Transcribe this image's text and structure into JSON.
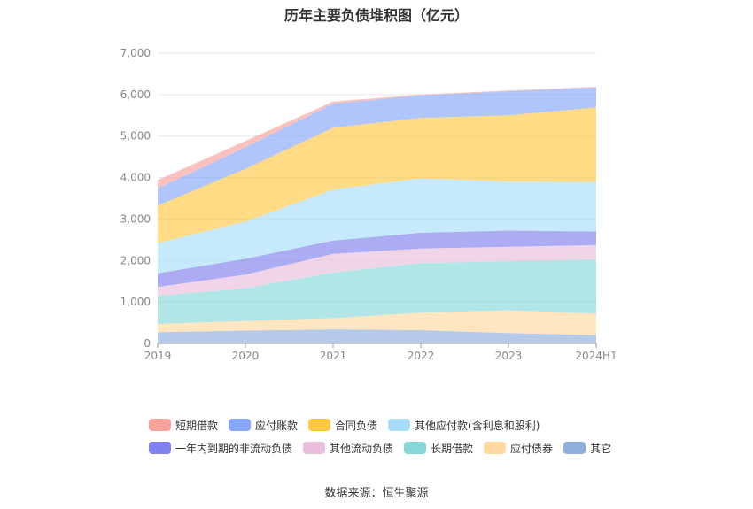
{
  "title": "历年主要负债堆积图（亿元）",
  "source": "数据来源：恒生聚源",
  "chart_data": {
    "type": "area",
    "stacked": true,
    "categories": [
      "2019",
      "2020",
      "2021",
      "2022",
      "2023",
      "2024H1"
    ],
    "ylim": [
      0,
      7000
    ],
    "yticks": [
      "0",
      "1,000",
      "2,000",
      "3,000",
      "4,000",
      "5,000",
      "6,000",
      "7,000"
    ],
    "grid": true,
    "legend_position": "bottom",
    "series": [
      {
        "name": "其它",
        "color": "#8eaedc",
        "values": [
          270,
          310,
          340,
          320,
          250,
          200
        ]
      },
      {
        "name": "应付债券",
        "color": "#ffd8a0",
        "values": [
          200,
          230,
          270,
          420,
          550,
          520
        ]
      },
      {
        "name": "长期借款",
        "color": "#86d8d8",
        "values": [
          680,
          790,
          1100,
          1200,
          1180,
          1300
        ]
      },
      {
        "name": "其他流动负债",
        "color": "#e8bedc",
        "values": [
          210,
          330,
          450,
          350,
          350,
          350
        ]
      },
      {
        "name": "一年内到期的非流动负债",
        "color": "#8080f0",
        "values": [
          330,
          380,
          320,
          380,
          390,
          330
        ]
      },
      {
        "name": "其他应付款(含利息和股利)",
        "color": "#a8ddfa",
        "values": [
          730,
          900,
          1230,
          1310,
          1180,
          1190
        ]
      },
      {
        "name": "合同负债",
        "color": "#fdc742",
        "values": [
          900,
          1270,
          1490,
          1460,
          1600,
          1800
        ]
      },
      {
        "name": "应付账款",
        "color": "#86a6fa",
        "values": [
          420,
          520,
          580,
          540,
          580,
          480
        ]
      },
      {
        "name": "短期借款",
        "color": "#f8a09a",
        "values": [
          200,
          150,
          50,
          20,
          20,
          20
        ]
      }
    ],
    "legend_order": [
      "短期借款",
      "应付账款",
      "合同负债",
      "其他应付款(含利息和股利)",
      "一年内到期的非流动负债",
      "其他流动负债",
      "长期借款",
      "应付债券",
      "其它"
    ]
  }
}
